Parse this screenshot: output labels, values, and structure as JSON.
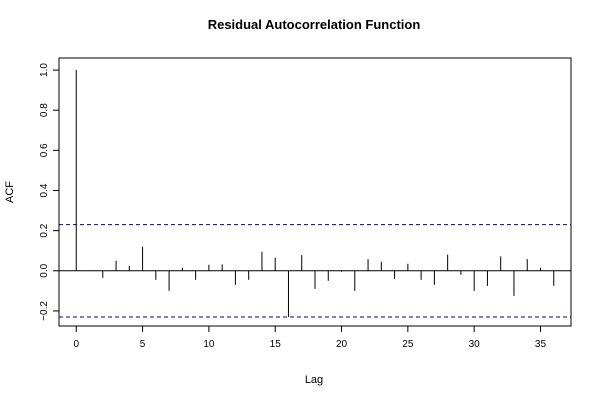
{
  "chart_data": {
    "type": "bar",
    "style": "lollipop-spikes",
    "title": "Residual Autocorrelation Function",
    "xlabel": "Lag",
    "ylabel": "ACF",
    "xlim": [
      -1.3,
      37.3
    ],
    "ylim": [
      -0.275,
      1.06
    ],
    "xticks": [
      "0",
      "5",
      "10",
      "15",
      "20",
      "25",
      "30",
      "35"
    ],
    "yticks": [
      "−0.2",
      "0.0",
      "0.2",
      "0.4",
      "0.6",
      "0.8",
      "1.0"
    ],
    "grid": false,
    "confidence_band": [
      0.23,
      -0.23
    ],
    "colors": {
      "spike": "#000000",
      "band": "#00008B",
      "zero_line": "#000000"
    },
    "lags": [
      0,
      1,
      2,
      3,
      4,
      5,
      6,
      7,
      8,
      9,
      10,
      11,
      12,
      13,
      14,
      15,
      16,
      17,
      18,
      19,
      20,
      21,
      22,
      23,
      24,
      25,
      26,
      27,
      28,
      29,
      30,
      31,
      32,
      33,
      34,
      35,
      36
    ],
    "values": [
      1.0,
      0.002,
      -0.035,
      0.05,
      0.025,
      0.12,
      -0.045,
      -0.1,
      0.015,
      -0.045,
      0.03,
      0.032,
      -0.07,
      -0.045,
      0.095,
      0.065,
      -0.23,
      0.078,
      -0.09,
      -0.05,
      -0.005,
      -0.1,
      0.058,
      0.045,
      -0.04,
      0.035,
      -0.045,
      -0.07,
      0.08,
      -0.02,
      -0.1,
      -0.075,
      0.072,
      -0.125,
      0.058,
      0.015,
      -0.075
    ]
  }
}
